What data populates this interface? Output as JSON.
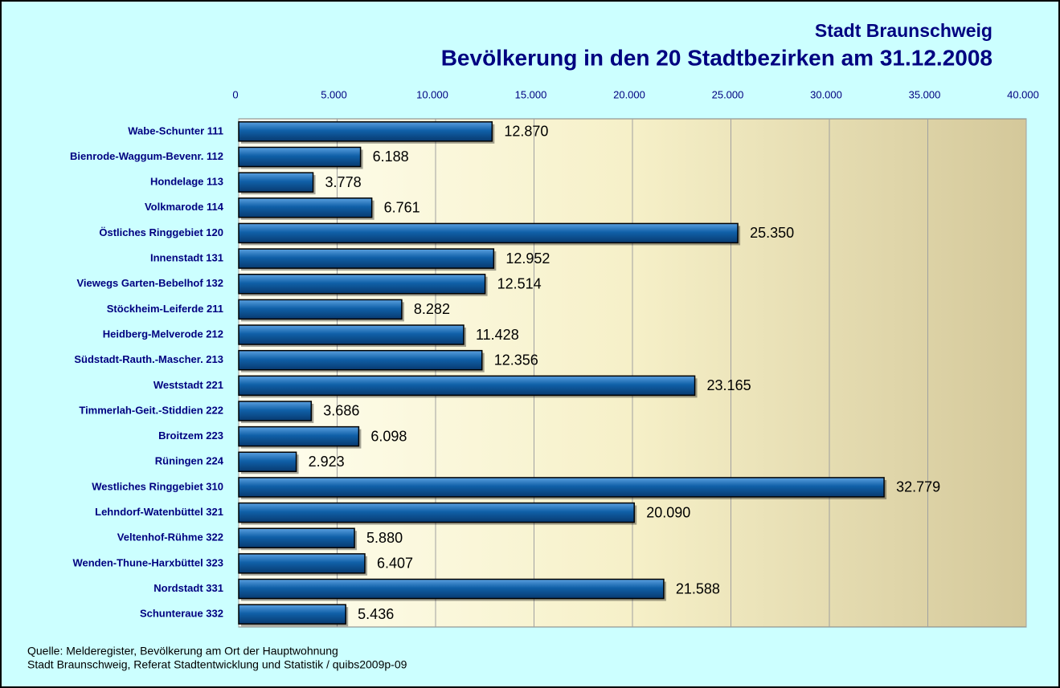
{
  "chart_data": {
    "type": "bar",
    "orientation": "horizontal",
    "title": "Stadt Braunschweig",
    "subtitle": "Bevölkerung in den 20 Stadtbezirken am 31.12.2008",
    "categories": [
      "Wabe-Schunter 111",
      "Bienrode-Waggum-Bevenr. 112",
      "Hondelage 113",
      "Volkmarode 114",
      "Östliches Ringgebiet 120",
      "Innenstadt 131",
      "Viewegs Garten-Bebelhof 132",
      "Stöckheim-Leiferde 211",
      "Heidberg-Melverode 212",
      "Südstadt-Rauth.-Mascher. 213",
      "Weststadt 221",
      "Timmerlah-Geit.-Stiddien 222",
      "Broitzem 223",
      "Rüningen 224",
      "Westliches Ringgebiet 310",
      "Lehndorf-Watenbüttel 321",
      "Veltenhof-Rühme 322",
      "Wenden-Thune-Harxbüttel 323",
      "Nordstadt 331",
      "Schunteraue 332"
    ],
    "values": [
      12870,
      6188,
      3778,
      6761,
      25350,
      12952,
      12514,
      8282,
      11428,
      12356,
      23165,
      3686,
      6098,
      2923,
      32779,
      20090,
      5880,
      6407,
      21588,
      5436
    ],
    "value_labels": [
      "12.870",
      "6.188",
      "3.778",
      "6.761",
      "25.350",
      "12.952",
      "12.514",
      "8.282",
      "11.428",
      "12.356",
      "23.165",
      "3.686",
      "6.098",
      "2.923",
      "32.779",
      "20.090",
      "5.880",
      "6.407",
      "21.588",
      "5.436"
    ],
    "color": "#1060a8",
    "xlim": [
      0,
      40000
    ],
    "xticks": [
      0,
      {
        "value": 5000,
        "label": "5.000"
      },
      {
        "value": 10000,
        "label": "10.000"
      },
      {
        "value": 15000,
        "label": "15.000"
      },
      {
        "value": 20000,
        "label": "20.000"
      },
      {
        "value": 25000,
        "label": "25.000"
      },
      {
        "value": 30000,
        "label": "30.000"
      },
      {
        "value": 35000,
        "label": "35.000"
      },
      {
        "value": 40000,
        "label": "40.000"
      }
    ],
    "grid": true,
    "footnotes": [
      "Quelle: Melderegister, Bevölkerung am Ort der Hauptwohnung",
      "Stadt Braunschweig, Referat Stadtentwicklung und Statistik / quibs2009p-09"
    ]
  }
}
